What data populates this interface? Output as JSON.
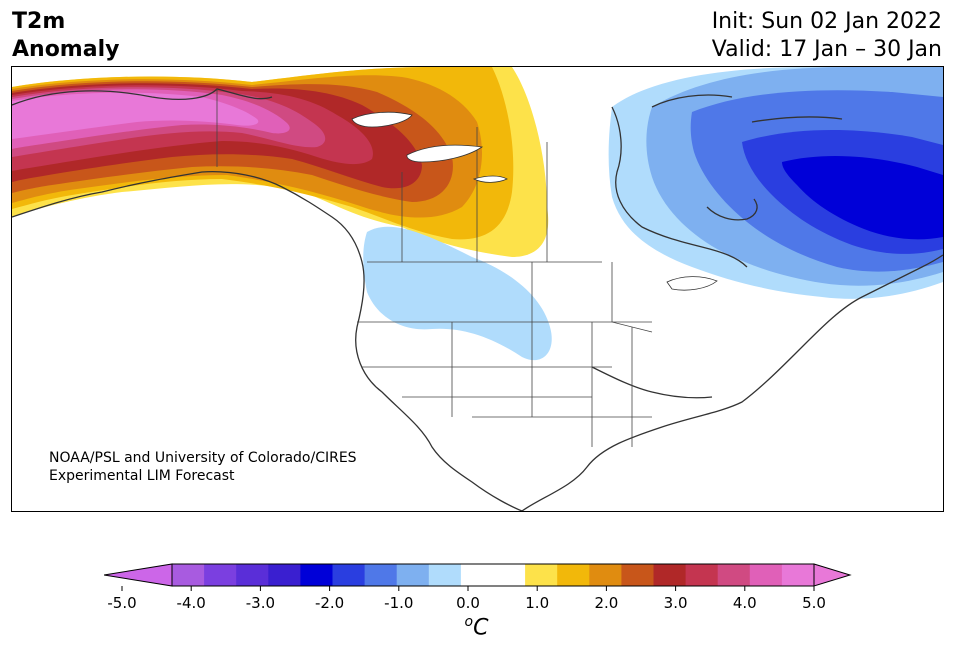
{
  "title": {
    "line1": "T2m",
    "line2": "Anomaly",
    "init": "Init: Sun 02 Jan 2022",
    "valid": "Valid: 17 Jan – 30 Jan"
  },
  "credit": {
    "line1": "NOAA/PSL and University of Colorado/CIRES",
    "line2": "Experimental LIM Forecast"
  },
  "colorbar": {
    "ticks": [
      "-5.0",
      "-4.0",
      "-3.0",
      "-2.0",
      "-1.0",
      "0.0",
      "1.0",
      "2.0",
      "3.0",
      "4.0",
      "5.0"
    ],
    "colors": [
      "#a85be0",
      "#7b3fe0",
      "#5a2ed8",
      "#3a1fd0",
      "#0000d8",
      "#2a3ee0",
      "#4f78e8",
      "#7eb0f0",
      "#b0dcfc",
      "#ffffff",
      "#ffffff",
      "#fde24a",
      "#f2b80a",
      "#e08c10",
      "#c8561a",
      "#b02828",
      "#c43550",
      "#d04a82",
      "#e060b8",
      "#e878d8"
    ],
    "under_color": "#cc66e8",
    "over_color": "#e878d8",
    "unit_base": "C",
    "unit_sup": "o"
  },
  "map": {
    "projection": "North America",
    "ocean_color": "#ffffff",
    "coast_color": "#333333"
  }
}
